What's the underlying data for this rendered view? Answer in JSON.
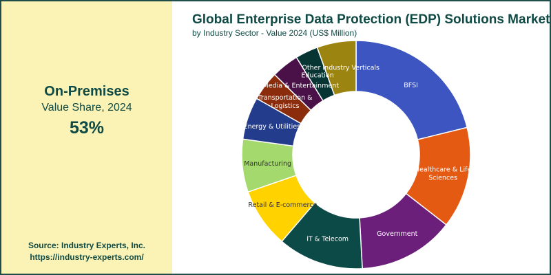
{
  "sidebar": {
    "segment": "On-Premises",
    "metric": "Value Share, 2024",
    "value": "53%",
    "source_line1": "Source: Industry Experts, Inc.",
    "source_line2": "https://industry-experts.com/"
  },
  "colors": {
    "sidebar_bg": "#fbf3b5",
    "title": "#0f4a45"
  },
  "chart_data": {
    "type": "pie",
    "donut": true,
    "title": "Global Enterprise Data Protection (EDP) Solutions Market",
    "subtitle": "by Industry Sector - Value 2024 (US$ Million)",
    "legend": "none",
    "slices": [
      {
        "label": "BFSI",
        "value": 21.8,
        "color": "#3c55c0",
        "label_lines": [
          "BFSI"
        ]
      },
      {
        "label": "Healthcare & Life Sciences",
        "value": 14.8,
        "color": "#e55a12",
        "label_lines": [
          "Healthcare & Life",
          "Sciences"
        ]
      },
      {
        "label": "Government",
        "value": 14.0,
        "color": "#6b1f7b",
        "label_lines": [
          "Government"
        ]
      },
      {
        "label": "IT & Telecom",
        "value": 12.5,
        "color": "#0c4a47",
        "label_lines": [
          "IT & Telecom"
        ]
      },
      {
        "label": "Retail & E-commerce",
        "value": 8.7,
        "color": "#ffd200",
        "label_lines": [
          "Retail & E-commerce"
        ]
      },
      {
        "label": "Manufacturing",
        "value": 7.7,
        "color": "#a3d96d",
        "label_lines": [
          "Manufacturing"
        ]
      },
      {
        "label": "Energy & Utilities",
        "value": 6.2,
        "color": "#233c8c",
        "label_lines": [
          "Energy & Utilities"
        ]
      },
      {
        "label": "Transportation & Logistics",
        "value": 4.3,
        "color": "#8b2d0c",
        "label_lines": [
          "Transportation &",
          "Logistics"
        ]
      },
      {
        "label": "Media & Entertainment",
        "value": 4.0,
        "color": "#4a1149",
        "label_lines": [
          "Media & Entertainment"
        ]
      },
      {
        "label": "Education",
        "value": 3.3,
        "color": "#073534",
        "label_lines": [
          "Education"
        ]
      },
      {
        "label": "Other Industry Verticals",
        "value": 5.7,
        "color": "#9c8410",
        "label_lines": [
          "Other Industry Verticals"
        ]
      }
    ]
  }
}
